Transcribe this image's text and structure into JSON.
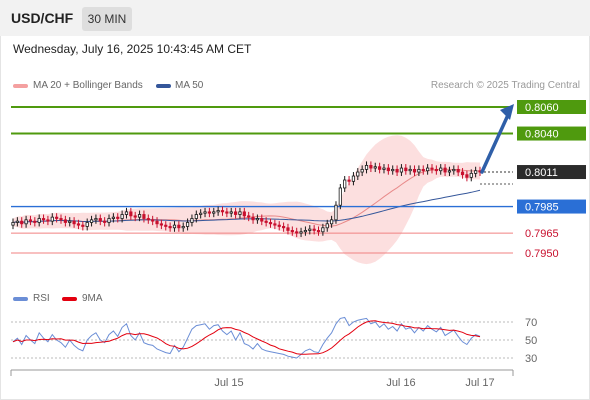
{
  "header": {
    "symbol": "USD/CHF",
    "timeframe": "30 MIN",
    "timestamp": "Wednesday, July 16, 2025 10:43:45 AM CET"
  },
  "legend": {
    "ma20_bollinger": "MA 20 + Bollinger Bands",
    "ma50": "MA 50",
    "credit": "Research © 2025 Trading Central"
  },
  "colors": {
    "up_candle": "#1a1a1a",
    "down_candle": "#c8102e",
    "bollinger_fill": "#fcd9d9",
    "ma20": "#e88a8a",
    "ma50": "#34569a",
    "resistance": "#4f9a0e",
    "pivot": "#2a6fd6",
    "support": "#f08080",
    "arrow": "#2f5fa8",
    "rsi": "#6b8ed6",
    "rsi_ma": "#e3000f"
  },
  "levels": {
    "r2": "0.8060",
    "r1": "0.8040",
    "last": "0.8011",
    "pivot": "0.7985",
    "s1": "0.7965",
    "s2": "0.7950"
  },
  "rsi_panel": {
    "rsi_label": "RSI",
    "ma_label": "9MA",
    "levels": [
      "70",
      "50",
      "30"
    ]
  },
  "chart_data": {
    "type": "candlestick",
    "x_tick_labels": [
      "Jul 15",
      "Jul 16",
      "Jul 17"
    ],
    "price_close": [
      0.7973,
      0.7974,
      0.7972,
      0.7975,
      0.7974,
      0.7973,
      0.7976,
      0.7975,
      0.7974,
      0.7977,
      0.7976,
      0.7975,
      0.7973,
      0.7974,
      0.7972,
      0.7971,
      0.797,
      0.7973,
      0.7975,
      0.7976,
      0.7974,
      0.7973,
      0.7976,
      0.7977,
      0.7976,
      0.7979,
      0.7981,
      0.7978,
      0.7977,
      0.7979,
      0.7976,
      0.7975,
      0.7974,
      0.7972,
      0.7971,
      0.797,
      0.7969,
      0.7971,
      0.7969,
      0.797,
      0.7973,
      0.7976,
      0.7979,
      0.798,
      0.7981,
      0.798,
      0.7981,
      0.7982,
      0.7981,
      0.798,
      0.7981,
      0.7979,
      0.7981,
      0.7978,
      0.7977,
      0.7975,
      0.7976,
      0.7974,
      0.7973,
      0.7972,
      0.7971,
      0.797,
      0.7969,
      0.7967,
      0.7966,
      0.7965,
      0.7966,
      0.7967,
      0.7968,
      0.7967,
      0.7966,
      0.7969,
      0.7972,
      0.7975,
      0.7986,
      0.7999,
      0.8005,
      0.8004,
      0.8008,
      0.8011,
      0.8013,
      0.8016,
      0.8014,
      0.8015,
      0.8013,
      0.8014,
      0.8012,
      0.8013,
      0.8011,
      0.8014,
      0.8012,
      0.8013,
      0.8011,
      0.8013,
      0.8012,
      0.8014,
      0.8013,
      0.8012,
      0.8014,
      0.8011,
      0.8012,
      0.8013,
      0.8011,
      0.8009,
      0.8007,
      0.801,
      0.8012,
      0.8011
    ],
    "rsi": [
      48,
      52,
      45,
      55,
      50,
      46,
      58,
      52,
      48,
      56,
      50,
      47,
      42,
      50,
      44,
      40,
      38,
      50,
      55,
      58,
      50,
      47,
      56,
      60,
      54,
      64,
      68,
      55,
      50,
      58,
      47,
      45,
      44,
      40,
      38,
      36,
      35,
      44,
      37,
      42,
      52,
      62,
      66,
      67,
      68,
      62,
      66,
      67,
      60,
      56,
      60,
      50,
      58,
      46,
      44,
      40,
      46,
      40,
      38,
      37,
      36,
      35,
      34,
      32,
      31,
      30,
      34,
      38,
      40,
      37,
      36,
      45,
      52,
      58,
      68,
      74,
      75,
      66,
      70,
      72,
      73,
      74,
      68,
      70,
      64,
      68,
      62,
      65,
      60,
      68,
      62,
      64,
      58,
      64,
      60,
      66,
      62,
      59,
      64,
      55,
      58,
      61,
      54,
      48,
      45,
      52,
      56,
      54
    ],
    "r2": 0.806,
    "r1": 0.804,
    "last": 0.8011,
    "pivot": 0.7985,
    "s1": 0.7965,
    "s2": 0.795,
    "arrow_target": 0.806,
    "rsi_levels": [
      70,
      50,
      30
    ]
  }
}
